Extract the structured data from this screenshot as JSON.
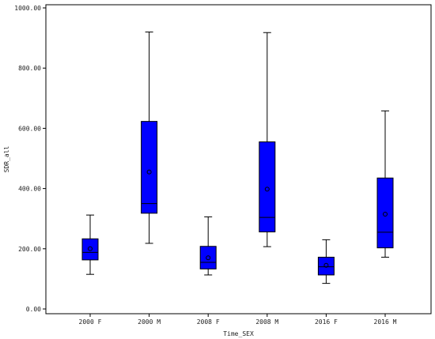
{
  "chart_data": {
    "type": "box",
    "xlabel": "Time_SEX",
    "ylabel": "SDR_all",
    "ylim": [
      0,
      1000
    ],
    "yticks": [
      "0.00",
      "200.00",
      "400.00",
      "600.00",
      "800.00",
      "1000.00"
    ],
    "categories": [
      "2000 F",
      "2000 M",
      "2008 F",
      "2008 M",
      "2016 F",
      "2016 M"
    ],
    "box_color": "#0000ff",
    "boxes": [
      {
        "min": 115,
        "q1": 163,
        "median": 188,
        "q3": 233,
        "max": 312,
        "mean": 200
      },
      {
        "min": 218,
        "q1": 318,
        "median": 350,
        "q3": 623,
        "max": 920,
        "mean": 455
      },
      {
        "min": 113,
        "q1": 133,
        "median": 155,
        "q3": 208,
        "max": 306,
        "mean": 170
      },
      {
        "min": 207,
        "q1": 256,
        "median": 304,
        "q3": 555,
        "max": 918,
        "mean": 398
      },
      {
        "min": 85,
        "q1": 113,
        "median": 140,
        "q3": 172,
        "max": 230,
        "mean": 145
      },
      {
        "min": 172,
        "q1": 203,
        "median": 255,
        "q3": 435,
        "max": 658,
        "mean": 315
      }
    ]
  }
}
